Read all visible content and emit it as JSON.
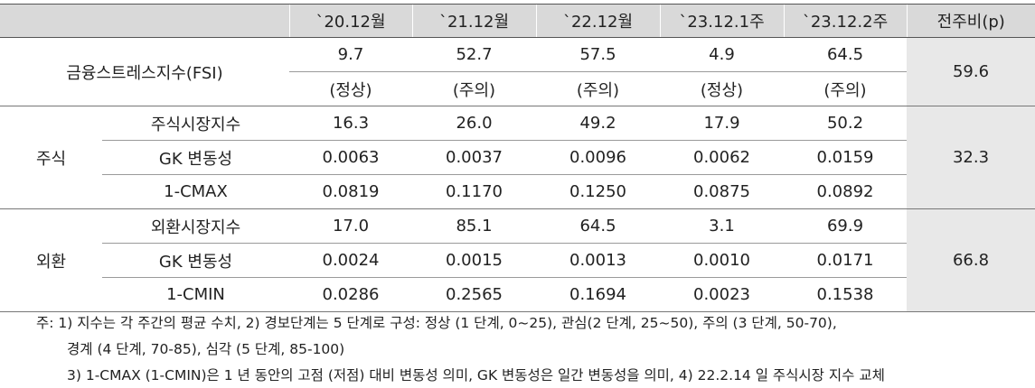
{
  "header": [
    "",
    "`20.12월",
    "`21.12월",
    "`22.12월",
    "`23.12.1주",
    "`23.12.2주",
    "전주비(p)"
  ],
  "fsi": {
    "label": "금융스트레스지수(FSI)",
    "values": [
      "9.7",
      "52.7",
      "57.5",
      "4.9",
      "64.5"
    ],
    "states": [
      "(정상)",
      "(주의)",
      "(주의)",
      "(정상)",
      "(주의)"
    ],
    "change": "59.6"
  },
  "stock": {
    "label": "주식",
    "change": "32.3",
    "rows": [
      {
        "name": "주식시장지수",
        "values": [
          "16.3",
          "26.0",
          "49.2",
          "17.9",
          "50.2"
        ]
      },
      {
        "name": "GK 변동성",
        "values": [
          "0.0063",
          "0.0037",
          "0.0096",
          "0.0062",
          "0.0159"
        ]
      },
      {
        "name": "1-CMAX",
        "values": [
          "0.0819",
          "0.1170",
          "0.1250",
          "0.0875",
          "0.0892"
        ]
      }
    ]
  },
  "fx": {
    "label": "외환",
    "change": "66.8",
    "rows": [
      {
        "name": "외환시장지수",
        "values": [
          "17.0",
          "85.1",
          "64.5",
          "3.1",
          "69.9"
        ]
      },
      {
        "name": "GK 변동성",
        "values": [
          "0.0024",
          "0.0015",
          "0.0013",
          "0.0010",
          "0.0171"
        ]
      },
      {
        "name": "1-CMIN",
        "values": [
          "0.0286",
          "0.2565",
          "0.1694",
          "0.0023",
          "0.1538"
        ]
      }
    ]
  },
  "footnotes": [
    "주: 1) 지수는 각 주간의 평균 수치, 2) 경보단계는 5 단계로 구성: 정상 (1 단계, 0~25), 관심(2 단계, 25~50), 주의 (3 단계, 50-70),",
    "경계 (4 단계, 70-85), 심각 (5 단계, 85-100)",
    "3) 1-CMAX (1-CMIN)은 1 년 동안의 고점 (저점) 대비 변동성 의미, GK 변동성은 일간 변동성을 의미, 4) 22.2.14 일 주식시장 지수 교체"
  ]
}
